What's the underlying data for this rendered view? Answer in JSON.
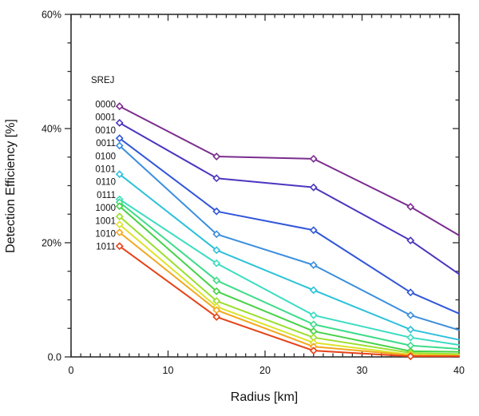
{
  "chart_data": {
    "type": "line",
    "title": "",
    "xlabel": "Radius [km]",
    "ylabel": "Detection Efficiency [%]",
    "legend_title": "SREJ",
    "legend_position": "upper-left-inside",
    "grid": false,
    "xlim": [
      0,
      40
    ],
    "ylim": [
      0,
      60
    ],
    "x_ticks": [
      0,
      10,
      20,
      30,
      40
    ],
    "x_tick_labels": [
      "0",
      "10",
      "20",
      "30",
      "40"
    ],
    "x_minor_step": 1,
    "y_ticks": [
      0,
      20,
      40,
      60
    ],
    "y_tick_labels": [
      "0.0",
      "20%",
      "40%",
      "60%"
    ],
    "y_minor_step": 5,
    "x": [
      5,
      15,
      25,
      35,
      40
    ],
    "marker": "open-diamond",
    "marker_points": [
      5,
      15,
      25,
      35
    ],
    "axis_color": "#2e2e2e",
    "text_color": "#111111",
    "series": [
      {
        "name": "0000",
        "color": "#7b2d8e",
        "values": [
          43.9,
          35.1,
          34.7,
          26.3,
          21.3
        ]
      },
      {
        "name": "0001",
        "color": "#4a36c0",
        "values": [
          41.0,
          31.3,
          29.7,
          20.4,
          14.5
        ]
      },
      {
        "name": "0010",
        "color": "#3156d8",
        "values": [
          38.3,
          25.5,
          22.2,
          11.3,
          7.6
        ]
      },
      {
        "name": "0011",
        "color": "#3b8ede",
        "values": [
          37.0,
          21.5,
          16.1,
          7.3,
          4.7
        ]
      },
      {
        "name": "0100",
        "color": "#2cc1da",
        "values": [
          32.0,
          18.7,
          11.7,
          4.8,
          3.0
        ]
      },
      {
        "name": "0101",
        "color": "#3bdcc3",
        "values": [
          27.6,
          16.4,
          7.3,
          3.4,
          2.1
        ]
      },
      {
        "name": "0110",
        "color": "#3edc8a",
        "values": [
          27.1,
          13.4,
          5.7,
          2.0,
          1.4
        ]
      },
      {
        "name": "0111",
        "color": "#46d246",
        "values": [
          26.4,
          11.5,
          4.5,
          1.0,
          0.9
        ]
      },
      {
        "name": "1000",
        "color": "#9bdf2e",
        "values": [
          24.6,
          9.8,
          3.4,
          0.7,
          0.5
        ]
      },
      {
        "name": "1001",
        "color": "#dde32b",
        "values": [
          23.2,
          8.8,
          2.5,
          0.4,
          0.3
        ]
      },
      {
        "name": "1010",
        "color": "#f2a71e",
        "values": [
          21.8,
          8.2,
          1.8,
          0.3,
          0.2
        ]
      },
      {
        "name": "1011",
        "color": "#e64218",
        "values": [
          19.4,
          7.0,
          1.1,
          0.1,
          0.1
        ]
      }
    ]
  }
}
